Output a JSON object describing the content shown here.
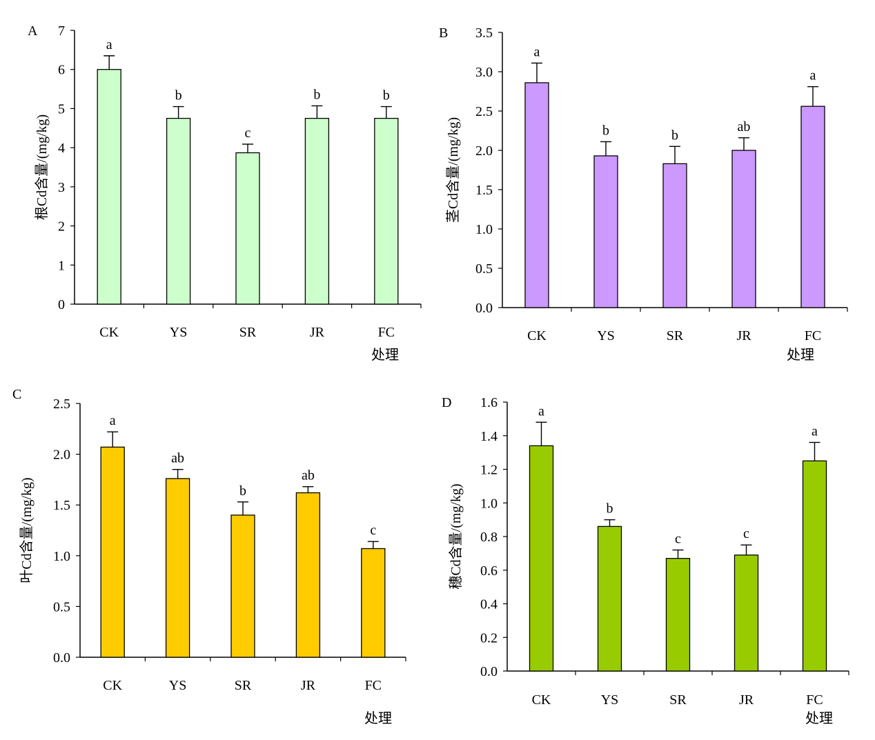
{
  "chart_data": [
    {
      "type": "bar",
      "panel_label": "A",
      "categories": [
        "CK",
        "YS",
        "SR",
        "JR",
        "FC"
      ],
      "values": [
        6.0,
        4.75,
        3.87,
        4.75,
        4.75
      ],
      "errors": [
        0.35,
        0.3,
        0.22,
        0.32,
        0.3
      ],
      "significance": [
        "a",
        "b",
        "c",
        "b",
        "b"
      ],
      "ylabel": "根Cd含量/(mg/kg)",
      "xlabel": "处理",
      "ylim": [
        0,
        7
      ],
      "yticks": [
        "0",
        "1",
        "2",
        "3",
        "4",
        "5",
        "6",
        "7"
      ],
      "color": "#CCFFCC"
    },
    {
      "type": "bar",
      "panel_label": "B",
      "categories": [
        "CK",
        "YS",
        "SR",
        "JR",
        "FC"
      ],
      "values": [
        2.86,
        1.93,
        1.83,
        2.0,
        2.56
      ],
      "errors": [
        0.25,
        0.18,
        0.22,
        0.16,
        0.25
      ],
      "significance": [
        "a",
        "b",
        "b",
        "ab",
        "a"
      ],
      "ylabel": "茎Cd含量/(mg/kg)",
      "xlabel": "处理",
      "ylim": [
        0,
        3.5
      ],
      "yticks": [
        "0.0",
        "0.5",
        "1.0",
        "1.5",
        "2.0",
        "2.5",
        "3.0",
        "3.5"
      ],
      "color": "#CC99FF"
    },
    {
      "type": "bar",
      "panel_label": "C",
      "categories": [
        "CK",
        "YS",
        "SR",
        "JR",
        "FC"
      ],
      "values": [
        2.07,
        1.76,
        1.4,
        1.62,
        1.07
      ],
      "errors": [
        0.15,
        0.09,
        0.13,
        0.06,
        0.07
      ],
      "significance": [
        "a",
        "ab",
        "b",
        "ab",
        "c"
      ],
      "ylabel": "叶Cd含量/(mg/kg)",
      "xlabel": "处理",
      "ylim": [
        0,
        2.5
      ],
      "yticks": [
        "0.0",
        "0.5",
        "1.0",
        "1.5",
        "2.0",
        "2.5"
      ],
      "color": "#FFCC00"
    },
    {
      "type": "bar",
      "panel_label": "D",
      "categories": [
        "CK",
        "YS",
        "SR",
        "JR",
        "FC"
      ],
      "values": [
        1.34,
        0.86,
        0.67,
        0.69,
        1.25
      ],
      "errors": [
        0.14,
        0.04,
        0.05,
        0.06,
        0.11
      ],
      "significance": [
        "a",
        "b",
        "c",
        "c",
        "a"
      ],
      "ylabel": "穗Cd含量/(mg/kg)",
      "xlabel": "处理",
      "ylim": [
        0,
        1.6
      ],
      "yticks": [
        "0.0",
        "0.2",
        "0.4",
        "0.6",
        "0.8",
        "1.0",
        "1.2",
        "1.4",
        "1.6"
      ],
      "color": "#99CC00"
    }
  ]
}
